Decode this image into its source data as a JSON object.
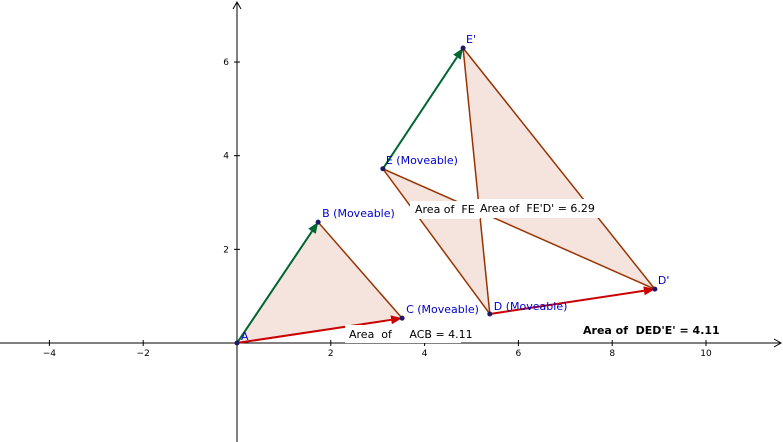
{
  "axes": {
    "xticks": [
      {
        "value": -4,
        "label": "−4"
      },
      {
        "value": -2,
        "label": "−2"
      },
      2,
      4,
      6,
      8,
      10
    ],
    "yticks": [
      2,
      4,
      6
    ]
  },
  "points": [
    {
      "label": "A",
      "x": 0,
      "y": 0
    },
    {
      "label": "B (Moveable)",
      "x": 1.73,
      "y": 2.58
    },
    {
      "label": "C (Moveable)",
      "x": 3.52,
      "y": 0.53
    },
    {
      "label": "E (Moveable)",
      "x": 3.11,
      "y": 3.72
    },
    {
      "label": "E'",
      "x": 4.82,
      "y": 6.3
    },
    {
      "label": "D (Moveable)",
      "x": 5.39,
      "y": 0.62
    },
    {
      "label": "D'",
      "x": 8.91,
      "y": 1.15
    }
  ],
  "areas": [
    "Area  of     ACB = 4.11",
    "Area of  FE",
    "Area of  FE'D' = 6.29",
    "Area of  DED'E' = 4.11"
  ]
}
